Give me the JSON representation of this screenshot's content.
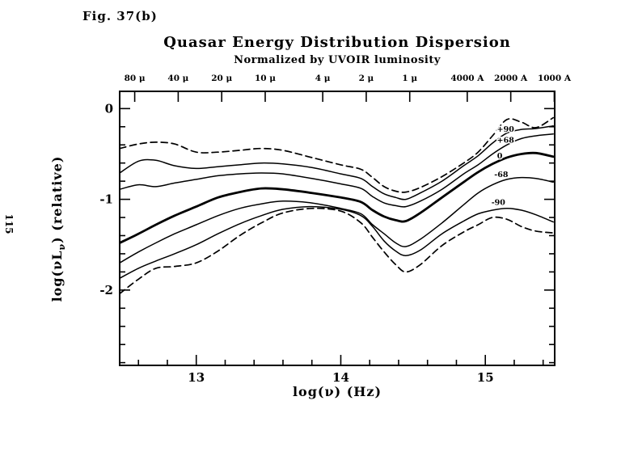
{
  "page": {
    "figure_label": "Fig. 37(b)",
    "side_page_number": "115"
  },
  "chart_data": {
    "type": "line",
    "title": "Quasar Energy Distribution Dispersion",
    "subtitle": "Normalized by UVOIR luminosity",
    "xlabel": "log(ν) (Hz)",
    "ylabel": "log(νLν) (relative)",
    "ylabel_parts": {
      "prefix": "log(νL",
      "sub": "ν",
      "suffix": ") (relative)"
    },
    "xlim": [
      12.47,
      15.48
    ],
    "ylim": [
      -2.83,
      0.19
    ],
    "x_major_ticks": [
      13,
      14,
      15
    ],
    "x_major_tick_labels": [
      "13",
      "14",
      "15"
    ],
    "x_minor_step": 0.2,
    "y_major_ticks": [
      0,
      -1,
      -2
    ],
    "y_major_tick_labels": [
      "0",
      "-1",
      "-2"
    ],
    "y_minor_step": 0.2,
    "grid": false,
    "legend": "curve labels at right side of plot",
    "top_axis": {
      "ticks": [
        {
          "label": "80 μ",
          "lognu": 12.574
        },
        {
          "label": "40 μ",
          "lognu": 12.875
        },
        {
          "label": "20 μ",
          "lognu": 13.176
        },
        {
          "label": "10 μ",
          "lognu": 13.477
        },
        {
          "label": "4 μ",
          "lognu": 13.875
        },
        {
          "label": "2 μ",
          "lognu": 14.176
        },
        {
          "label": "1 μ",
          "lognu": 14.477
        },
        {
          "label": "4000 A",
          "lognu": 14.875
        },
        {
          "label": "2000 A",
          "lognu": 15.176
        },
        {
          "label": "1000 A",
          "lognu": 15.477
        }
      ]
    },
    "x": [
      12.47,
      12.6,
      12.72,
      12.85,
      13.0,
      13.15,
      13.3,
      13.45,
      13.6,
      13.8,
      14.0,
      14.14,
      14.22,
      14.3,
      14.38,
      14.45,
      14.55,
      14.7,
      14.85,
      14.95,
      15.05,
      15.15,
      15.25,
      15.35,
      15.47
    ],
    "series": [
      {
        "id": "max-envelope",
        "name": "maximum envelope",
        "style": "dashed",
        "label": null,
        "y": [
          -0.44,
          -0.39,
          -0.37,
          -0.39,
          -0.48,
          -0.48,
          -0.46,
          -0.44,
          -0.46,
          -0.54,
          -0.62,
          -0.67,
          -0.76,
          -0.86,
          -0.91,
          -0.92,
          -0.87,
          -0.75,
          -0.6,
          -0.48,
          -0.3,
          -0.12,
          -0.15,
          -0.21,
          -0.1
        ]
      },
      {
        "id": "plus90",
        "name": "+90 percentile",
        "style": "solid",
        "label": {
          "text": "+90",
          "x": 15.14,
          "y": -0.225
        },
        "y": [
          -0.71,
          -0.58,
          -0.57,
          -0.63,
          -0.66,
          -0.64,
          -0.62,
          -0.6,
          -0.61,
          -0.65,
          -0.72,
          -0.77,
          -0.86,
          -0.94,
          -0.98,
          -1.0,
          -0.93,
          -0.8,
          -0.63,
          -0.52,
          -0.38,
          -0.27,
          -0.23,
          -0.22,
          -0.19
        ]
      },
      {
        "id": "plus68",
        "name": "+68 percentile",
        "style": "solid",
        "label": {
          "text": "+68",
          "x": 15.14,
          "y": -0.345
        },
        "y": [
          -0.89,
          -0.84,
          -0.86,
          -0.82,
          -0.78,
          -0.74,
          -0.72,
          -0.71,
          -0.72,
          -0.77,
          -0.83,
          -0.88,
          -0.97,
          -1.04,
          -1.07,
          -1.08,
          -1.02,
          -0.89,
          -0.72,
          -0.62,
          -0.5,
          -0.4,
          -0.33,
          -0.3,
          -0.28
        ]
      },
      {
        "id": "median",
        "name": "median (0)",
        "style": "thick",
        "label": {
          "text": "0",
          "x": 15.1,
          "y": -0.52
        },
        "y": [
          -1.48,
          -1.38,
          -1.28,
          -1.18,
          -1.08,
          -0.98,
          -0.92,
          -0.88,
          -0.89,
          -0.93,
          -0.98,
          -1.03,
          -1.12,
          -1.19,
          -1.23,
          -1.24,
          -1.15,
          -0.98,
          -0.81,
          -0.7,
          -0.61,
          -0.54,
          -0.5,
          -0.49,
          -0.53
        ]
      },
      {
        "id": "minus68",
        "name": "-68 percentile",
        "style": "solid",
        "label": {
          "text": "-68",
          "x": 15.11,
          "y": -0.725
        },
        "y": [
          -1.7,
          -1.58,
          -1.48,
          -1.38,
          -1.28,
          -1.18,
          -1.1,
          -1.05,
          -1.02,
          -1.04,
          -1.1,
          -1.16,
          -1.28,
          -1.38,
          -1.48,
          -1.52,
          -1.44,
          -1.26,
          -1.06,
          -0.93,
          -0.84,
          -0.78,
          -0.76,
          -0.77,
          -0.81
        ]
      },
      {
        "id": "minus90",
        "name": "-90 percentile",
        "style": "solid",
        "label": {
          "text": "-90",
          "x": 15.09,
          "y": -1.03
        },
        "y": [
          -1.87,
          -1.76,
          -1.68,
          -1.6,
          -1.5,
          -1.38,
          -1.27,
          -1.18,
          -1.11,
          -1.08,
          -1.11,
          -1.18,
          -1.3,
          -1.46,
          -1.57,
          -1.62,
          -1.56,
          -1.38,
          -1.24,
          -1.16,
          -1.12,
          -1.1,
          -1.12,
          -1.17,
          -1.25
        ]
      },
      {
        "id": "min-envelope",
        "name": "minimum envelope",
        "style": "dashed",
        "label": null,
        "y": [
          -2.04,
          -1.88,
          -1.76,
          -1.74,
          -1.7,
          -1.57,
          -1.4,
          -1.26,
          -1.15,
          -1.1,
          -1.13,
          -1.26,
          -1.42,
          -1.58,
          -1.72,
          -1.8,
          -1.72,
          -1.51,
          -1.36,
          -1.28,
          -1.2,
          -1.22,
          -1.3,
          -1.35,
          -1.37
        ]
      }
    ]
  }
}
